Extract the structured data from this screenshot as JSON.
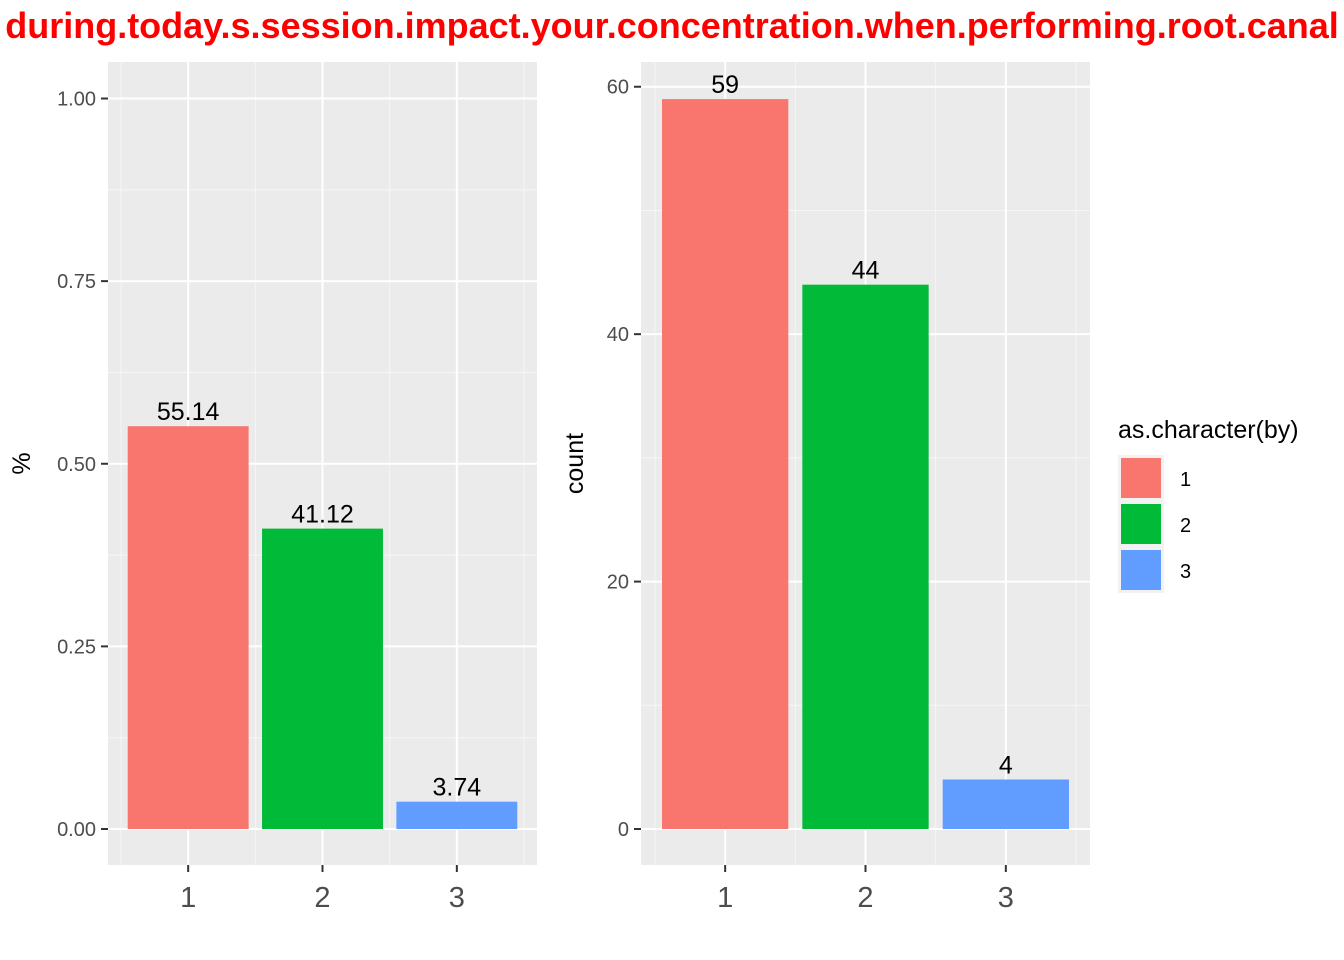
{
  "title": "during.today.s.session.impact.your.concentration.when.performing.root.canal",
  "colors": {
    "title": "#ff0000",
    "panel_bg": "#ebebeb",
    "grid_major": "#ffffff",
    "grid_minor": "#f5f5f5",
    "axis_tick": "#333333"
  },
  "chart_data": [
    {
      "type": "bar",
      "categories": [
        "1",
        "2",
        "3"
      ],
      "values": [
        0.5514,
        0.4112,
        0.0374
      ],
      "data_labels": [
        "55.14",
        "41.12",
        "3.74"
      ],
      "colors": [
        "#f8766d",
        "#00ba38",
        "#619cff"
      ],
      "xlabel": "",
      "ylabel": "%",
      "ylim": [
        0,
        1.05
      ],
      "yticks": [
        0,
        0.25,
        0.5,
        0.75,
        1.0
      ],
      "ytick_labels": [
        "0.00",
        "0.25",
        "0.50",
        "0.75",
        "1.00"
      ],
      "grid": true
    },
    {
      "type": "bar",
      "categories": [
        "1",
        "2",
        "3"
      ],
      "values": [
        59,
        44,
        4
      ],
      "data_labels": [
        "59",
        "44",
        "4"
      ],
      "colors": [
        "#f8766d",
        "#00ba38",
        "#619cff"
      ],
      "xlabel": "",
      "ylabel": "count",
      "ylim": [
        0,
        62
      ],
      "yticks": [
        0,
        20,
        40,
        60
      ],
      "ytick_labels": [
        "0",
        "20",
        "40",
        "60"
      ],
      "grid": true
    }
  ],
  "legend": {
    "title": "as.character(by)",
    "placement": "right",
    "items": [
      {
        "label": "1",
        "color": "#f8766d"
      },
      {
        "label": "2",
        "color": "#00ba38"
      },
      {
        "label": "3",
        "color": "#619cff"
      }
    ]
  }
}
